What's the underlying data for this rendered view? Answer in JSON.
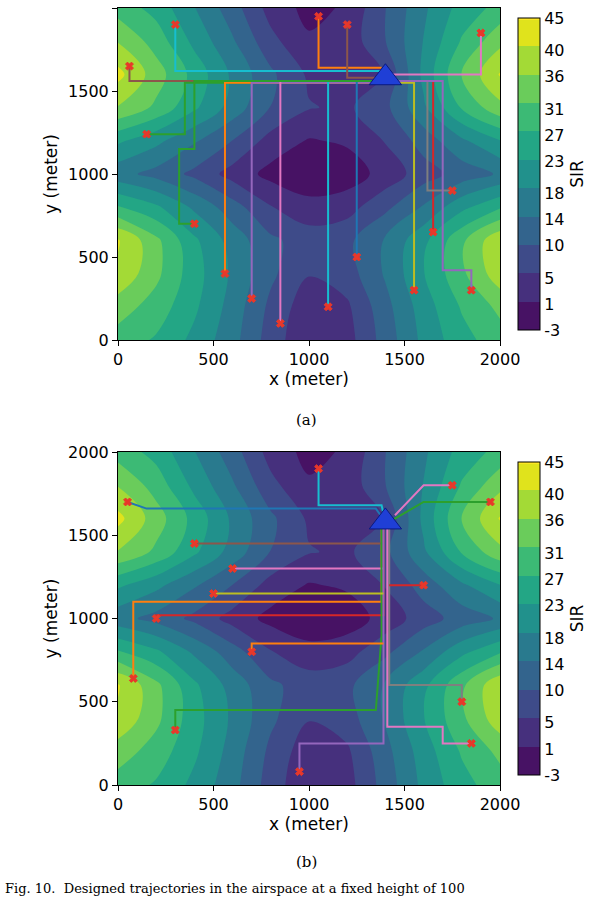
{
  "caption": "Fig. 10.  Designed trajectories in the airspace at a fixed height of 100",
  "chart_data": [
    {
      "type": "contour",
      "subtitle": "(a)",
      "x_label": "x (meter)",
      "y_label": "y (meter)",
      "xlim": [
        0,
        2000
      ],
      "ylim": [
        0,
        2000
      ],
      "xticks": [
        0,
        500,
        1000,
        1500,
        2000
      ],
      "yticks": [
        0,
        500,
        1000,
        1500,
        2000
      ],
      "grid": false,
      "marker": "x",
      "color": "#e8382a",
      "grid_x": [
        0,
        200,
        400,
        600,
        800,
        1000,
        1200,
        1400,
        1600,
        1800,
        2000
      ],
      "grid_y": [
        0,
        200,
        400,
        600,
        800,
        1000,
        1200,
        1400,
        1600,
        1800,
        2000
      ],
      "cells": [
        [
          30,
          27,
          22,
          16,
          8,
          2,
          4,
          12,
          20,
          26,
          30
        ],
        [
          34,
          30,
          24,
          17,
          9,
          3,
          5,
          13,
          21,
          28,
          33
        ],
        [
          40,
          33,
          25,
          18,
          11,
          6,
          8,
          15,
          23,
          31,
          39
        ],
        [
          41,
          33,
          24,
          17,
          11,
          8,
          9,
          15,
          22,
          31,
          40
        ],
        [
          28,
          24,
          18,
          12,
          6,
          3,
          4,
          9,
          15,
          22,
          27
        ],
        [
          16,
          13,
          9,
          4,
          0,
          -2,
          -1,
          3,
          8,
          12,
          15
        ],
        [
          24,
          20,
          15,
          10,
          4,
          1,
          2,
          6,
          12,
          18,
          23
        ],
        [
          36,
          31,
          24,
          17,
          10,
          6,
          5,
          9,
          18,
          28,
          35
        ],
        [
          42,
          34,
          26,
          18,
          11,
          5,
          2,
          6,
          20,
          32,
          41
        ],
        [
          36,
          30,
          22,
          15,
          7,
          2,
          3,
          10,
          19,
          28,
          35
        ],
        [
          30,
          26,
          19,
          12,
          4,
          0,
          2,
          10,
          18,
          25,
          29
        ]
      ],
      "colorbar": {
        "title": "SIR",
        "range": [
          -3,
          45
        ],
        "ticks": [
          -3,
          1,
          5,
          10,
          14,
          18,
          23,
          27,
          31,
          36,
          40,
          45
        ]
      },
      "series": [
        {
          "color": "#8c564b",
          "x": [
            60,
            60,
            1350
          ],
          "y": [
            1650,
            1560,
            1560
          ]
        },
        {
          "color": "#2ca02c",
          "x": [
            150,
            350,
            350,
            1380
          ],
          "y": [
            1240,
            1240,
            1550,
            1550
          ]
        },
        {
          "color": "#ff7f0e",
          "x": [
            560,
            560,
            1380
          ],
          "y": [
            400,
            1550,
            1550
          ]
        },
        {
          "color": "#9467bd",
          "x": [
            700,
            700,
            1380
          ],
          "y": [
            250,
            1550,
            1550
          ]
        },
        {
          "color": "#e377c2",
          "x": [
            850,
            850,
            1380
          ],
          "y": [
            100,
            1560,
            1560
          ]
        },
        {
          "color": "#17becf",
          "x": [
            1100,
            1100,
            1380
          ],
          "y": [
            200,
            1560,
            1560
          ]
        },
        {
          "color": "#1f77b4",
          "x": [
            1250,
            1250,
            1380
          ],
          "y": [
            500,
            1560,
            1560
          ]
        },
        {
          "color": "#bcbd22",
          "x": [
            1550,
            1550,
            1420
          ],
          "y": [
            300,
            1550,
            1550
          ]
        },
        {
          "color": "#d62728",
          "x": [
            1650,
            1650,
            1420
          ],
          "y": [
            650,
            1560,
            1560
          ]
        },
        {
          "color": "#7f7f7f",
          "x": [
            1750,
            1620,
            1620,
            1420
          ],
          "y": [
            900,
            900,
            1560,
            1560
          ]
        },
        {
          "color": "#e377c2",
          "x": [
            1900,
            1900,
            1420
          ],
          "y": [
            1850,
            1600,
            1600
          ]
        },
        {
          "color": "#17becf",
          "x": [
            300,
            300,
            1380
          ],
          "y": [
            1900,
            1620,
            1620
          ]
        },
        {
          "color": "#ff7f0e",
          "x": [
            1050,
            1050,
            1380
          ],
          "y": [
            1950,
            1640,
            1640
          ]
        },
        {
          "color": "#2ca02c",
          "x": [
            400,
            320,
            320,
            400,
            400,
            1380
          ],
          "y": [
            700,
            700,
            1150,
            1150,
            1560,
            1560
          ]
        },
        {
          "color": "#8c564b",
          "x": [
            1200,
            1200,
            1380
          ],
          "y": [
            1900,
            1580,
            1580
          ]
        },
        {
          "color": "#9467bd",
          "x": [
            1850,
            1850,
            1700,
            1700,
            1420
          ],
          "y": [
            300,
            420,
            420,
            1560,
            1560
          ]
        },
        {
          "type": "scatter",
          "marker": "triangle-up",
          "color": "#1f3fd6",
          "x": [
            1400
          ],
          "y": [
            1580
          ]
        }
      ]
    },
    {
      "type": "contour",
      "subtitle": "(b)",
      "x_label": "x (meter)",
      "y_label": "y (meter)",
      "xlim": [
        0,
        2000
      ],
      "ylim": [
        0,
        2000
      ],
      "xticks": [
        0,
        500,
        1000,
        1500,
        2000
      ],
      "yticks": [
        0,
        500,
        1000,
        1500,
        2000
      ],
      "grid": false,
      "marker": "x",
      "color": "#e8382a",
      "grid_x": [
        0,
        200,
        400,
        600,
        800,
        1000,
        1200,
        1400,
        1600,
        1800,
        2000
      ],
      "grid_y": [
        0,
        200,
        400,
        600,
        800,
        1000,
        1200,
        1400,
        1600,
        1800,
        2000
      ],
      "cells": [
        [
          30,
          27,
          22,
          16,
          8,
          2,
          4,
          12,
          20,
          26,
          30
        ],
        [
          34,
          30,
          24,
          17,
          9,
          3,
          5,
          13,
          21,
          28,
          33
        ],
        [
          40,
          33,
          25,
          18,
          11,
          6,
          8,
          15,
          23,
          31,
          39
        ],
        [
          41,
          33,
          24,
          17,
          11,
          8,
          9,
          15,
          22,
          31,
          40
        ],
        [
          28,
          24,
          18,
          12,
          6,
          3,
          4,
          9,
          15,
          22,
          27
        ],
        [
          16,
          13,
          9,
          4,
          0,
          -2,
          -1,
          3,
          8,
          12,
          15
        ],
        [
          24,
          20,
          15,
          10,
          4,
          1,
          2,
          6,
          12,
          18,
          23
        ],
        [
          36,
          31,
          24,
          17,
          10,
          6,
          5,
          9,
          18,
          28,
          35
        ],
        [
          42,
          34,
          26,
          18,
          11,
          5,
          2,
          6,
          20,
          32,
          41
        ],
        [
          36,
          30,
          22,
          15,
          7,
          2,
          3,
          10,
          19,
          28,
          35
        ],
        [
          30,
          26,
          19,
          12,
          4,
          0,
          2,
          10,
          18,
          25,
          29
        ]
      ],
      "colorbar": {
        "title": "SIR",
        "range": [
          -3,
          45
        ],
        "ticks": [
          -3,
          1,
          5,
          10,
          14,
          18,
          23,
          27,
          31,
          36,
          40,
          45
        ]
      },
      "series": [
        {
          "color": "#ff7f0e",
          "x": [
            80,
            80,
            1380,
            1380
          ],
          "y": [
            640,
            1100,
            1100,
            1560
          ]
        },
        {
          "color": "#d62728",
          "x": [
            200,
            200,
            1390,
            1390
          ],
          "y": [
            1000,
            1020,
            1020,
            1560
          ]
        },
        {
          "color": "#8c564b",
          "x": [
            400,
            1390
          ],
          "y": [
            1450,
            1450
          ]
        },
        {
          "color": "#e377c2",
          "x": [
            600,
            1390
          ],
          "y": [
            1300,
            1300
          ]
        },
        {
          "color": "#2ca02c",
          "x": [
            300,
            300,
            600,
            1350,
            1380,
            1380
          ],
          "y": [
            330,
            450,
            450,
            450,
            900,
            1560
          ]
        },
        {
          "color": "#9467bd",
          "x": [
            950,
            950,
            1390,
            1390
          ],
          "y": [
            80,
            250,
            250,
            1560
          ]
        },
        {
          "color": "#17becf",
          "x": [
            1050,
            1050,
            1380,
            1400
          ],
          "y": [
            1900,
            1680,
            1680,
            1580
          ]
        },
        {
          "color": "#1f77b4",
          "x": [
            50,
            150,
            1350,
            1400
          ],
          "y": [
            1700,
            1660,
            1660,
            1580
          ]
        },
        {
          "color": "#2ca02c",
          "x": [
            1950,
            1600,
            1420
          ],
          "y": [
            1700,
            1700,
            1580
          ]
        },
        {
          "color": "#7f7f7f",
          "x": [
            1800,
            1800,
            1420,
            1420
          ],
          "y": [
            500,
            600,
            600,
            1560
          ]
        },
        {
          "color": "#e377c2",
          "x": [
            1850,
            1700,
            1700,
            1410,
            1410
          ],
          "y": [
            250,
            250,
            350,
            350,
            1560
          ]
        },
        {
          "color": "#ff7f0e",
          "x": [
            700,
            700,
            1390
          ],
          "y": [
            800,
            850,
            850
          ]
        },
        {
          "color": "#bcbd22",
          "x": [
            500,
            1390
          ],
          "y": [
            1150,
            1150
          ]
        },
        {
          "color": "#e377c2",
          "x": [
            1750,
            1600,
            1450
          ],
          "y": [
            1800,
            1800,
            1620
          ]
        },
        {
          "color": "#d62728",
          "x": [
            1600,
            1420
          ],
          "y": [
            1200,
            1200
          ]
        },
        {
          "type": "scatter",
          "marker": "triangle-up",
          "color": "#1f3fd6",
          "x": [
            1400
          ],
          "y": [
            1580
          ]
        }
      ]
    }
  ]
}
